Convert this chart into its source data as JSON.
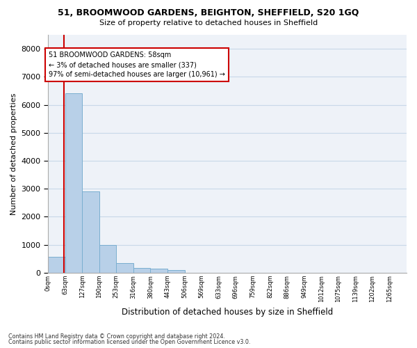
{
  "title1": "51, BROOMWOOD GARDENS, BEIGHTON, SHEFFIELD, S20 1GQ",
  "title2": "Size of property relative to detached houses in Sheffield",
  "xlabel": "Distribution of detached houses by size in Sheffield",
  "ylabel": "Number of detached properties",
  "bar_categories": [
    "0sqm",
    "63sqm",
    "127sqm",
    "190sqm",
    "253sqm",
    "316sqm",
    "380sqm",
    "443sqm",
    "506sqm",
    "569sqm",
    "633sqm",
    "696sqm",
    "759sqm",
    "822sqm",
    "886sqm",
    "949sqm",
    "1012sqm",
    "1075sqm",
    "1139sqm",
    "1202sqm",
    "1265sqm"
  ],
  "bar_values": [
    580,
    6400,
    2900,
    1000,
    350,
    175,
    150,
    100,
    0,
    0,
    0,
    0,
    0,
    0,
    0,
    0,
    0,
    0,
    0,
    0,
    0
  ],
  "bar_color": "#b8d0e8",
  "bar_edge_color": "#7aaed0",
  "grid_color": "#c8d8e8",
  "background_color": "#eef2f8",
  "property_line_x": 0.92,
  "annotation_text_line1": "51 BROOMWOOD GARDENS: 58sqm",
  "annotation_text_line2": "← 3% of detached houses are smaller (337)",
  "annotation_text_line3": "97% of semi-detached houses are larger (10,961) →",
  "annotation_box_color": "#cc0000",
  "ylim": [
    0,
    8500
  ],
  "yticks": [
    0,
    1000,
    2000,
    3000,
    4000,
    5000,
    6000,
    7000,
    8000
  ],
  "footnote1": "Contains HM Land Registry data © Crown copyright and database right 2024.",
  "footnote2": "Contains public sector information licensed under the Open Government Licence v3.0."
}
